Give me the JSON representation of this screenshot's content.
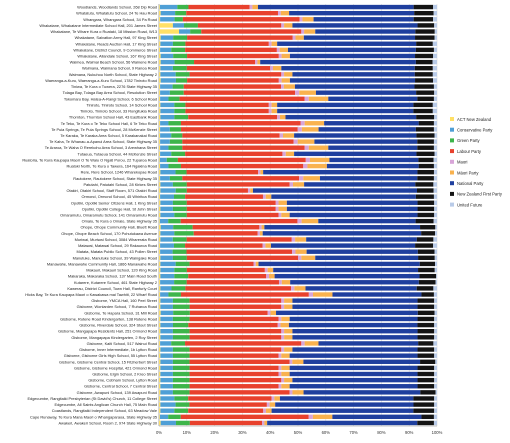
{
  "chart_data": {
    "type": "bar",
    "stacked": true,
    "orientation": "horizontal",
    "grid": true,
    "legend_position": "right",
    "xlim": [
      0,
      1
    ],
    "x_ticks": [
      "0%",
      "10%",
      "20%",
      "30%",
      "40%",
      "50%",
      "60%",
      "70%",
      "80%",
      "90%",
      "100%"
    ],
    "categories": [
      "Woodlands, Woodlands School, 268 Dip Road",
      "Whatatutu, Whatatutu School, 24 Te Hau Road",
      "Whangara, Whangara School, 34 Pa Road",
      "Whakatane, Whakatane Intermediate School Hall, 201 James Street",
      "Whakatane, Te Whare Kura o Ruataki, 18 Mission Road, W13",
      "Whakatane, Salvation Army Hall, 97 King Street",
      "Whakatane, Reads Auction Hall, 17 King Street",
      "Whakatane, District Council, 9 Commerce Street",
      "Whakatane, Allandale School, 167 King Street",
      "Waimea, Waimai Beach School, 56 Wainene Road",
      "Waimana, Waimana School, 9 Ranoa Road",
      "Waimana, Nukuhou North School, State Highway 2",
      "Waeranga-a-Kuru, Waeranga-a-Kuru School, 1782 Tiniroto Road",
      "Tiniwa, Te Kura o Tuwera, 2276 State Highway 35",
      "Tolaga Bay, Tolaga Bay Area School, Resolution Street",
      "Tokomaru Bay, Hatea-A-Rangi School, 6 School Road",
      "Tiniroto, Tiniroto School, 14 School Road",
      "Tiniroto, Tiniroto School, 33 Rongitukia Road",
      "Thornton, Thornton School Hall, 43 Eastbank Road",
      "Te Teko, Te Kura o Te Teko School Hall, 6 Te Teko Road",
      "Te Puia Springs, Te Puia Springs School, 28 McKenzie Street",
      "Te Karaka, Te Karaka Area School, 5 Karakanakai Road",
      "Te Kaha, Te Whanau-a-Apanui Area School, State Highway 35",
      "Te Araroa, Te Waha O Rerekohu Area School, 3 Arewhana Street",
      "Tutaeua, Tutaeua School, 44 McKenzie Street",
      "Ruatoria, Te Kura Kaupapa Maori O Te Waiu O Ngati Porou, 22 Tuparoa Road",
      "Ruatoki North, Te Kura o Tawera, 164 Ngakina Road",
      "Rere, Rere School, 1246 Wharekopae Road",
      "Rautokere, Rautokere School, State Highway 35",
      "Patutahi, Patutahi School, 28 Kirkes Street",
      "Otakiri, Otakiri School, Staff Room, 571 Otakiri Road",
      "Ormond, Ormond School, 45 Whiritoa Road",
      "Opotiki, Opotiki Senior Citizens Hall, 1 King Street",
      "Opotiki, Opotiki College Hall, St John Street",
      "Omaramutu, Omaramutu School, 141 Omaramutu Road",
      "Omaio, Te Kura o Omaio, State Highway 35",
      "Ohope, Ohope Community Hall, Bluett Road",
      "Ohope, Ohope Beach School, 170 Pohutukawa Avenue",
      "Muriwai, Muriwai School, 3084 Wharerata Road",
      "Matawai, Matawai School, 29 Rakauroa Road",
      "Matata, Matata Public School, 43 Pollen Street",
      "Manutuke, Manutuke School, 39 Waingake Road",
      "Manawahe, Manawahe Community Hall, 1866 Manawahe Road",
      "Makauri, Makauri School, 120 King Road",
      "Makaraka, Makaraka School, 137 Main Road South",
      "Kutarere, Kutarere School, 461 State Highway 2",
      "Kawerau, District Council, Town Hall, Ranfurly Court",
      "Hicks Bay, Te Kura Kaupapa Maori o Kawakawa mai Tawhiti, 22 Wharf Road",
      "Gisborne, YMCA Hall, 160 Peel Street",
      "Gisborne, Wonlarden School, 7 Ruharoa Road",
      "Gisborne, Te Hapara School, 31 Mill Road",
      "Gisborne, Rutene Road Kindergarten, 138 Rutene Road",
      "Gisborne, Riverdale School, 324 Stout Street",
      "Gisborne, Mangapapa Residents Hall, 251 Ormond Road",
      "Gisborne, Mangapapa Kindergarten, 2 Roy Street",
      "Gisborne, Kaiti School, 517 Wainui Road",
      "Gisborne, Inner Intermediate, 1b Lytton Road",
      "Gisborne, Gisborne Girls High School, 55 Lytton Road",
      "Gisborne, Gisborne Central School, 15 Fitzherbert Street",
      "Gisborne, Gisborne Hospital, 421 Ormond Road",
      "Gisborne, Elgin School, 2 Kreo Street",
      "Gisborne, Cobham School, Lytton Road",
      "Gisborne, Central School, 7 Central Street",
      "Gisborne, Awapuni School, 139 Awapuni Road",
      "Edgecumbe, Rangitaiki Presbyterian (St David's) Church, 11 College Street",
      "Edgecumbe, All Saints Anglican Church Hall, 75 Main Road",
      "Coastlands, Rangitaiki Independent School, 63 Meadow Vale",
      "Cape Runaway, Te Kura Mana Maori o Whangaparaoa, State Highway 35",
      "Awakeri, Awakeri School, Room 2, 974 State Highway 30"
    ],
    "series": [
      {
        "name": "ACT New Zealand",
        "values": [
          0.003,
          0.006,
          0.004,
          0.05,
          0.072,
          0.006,
          0.005,
          0.004,
          0.006,
          0.006,
          0.005,
          0.005,
          0.006,
          0.004,
          0.004,
          0.004,
          0.005,
          0.005,
          0.005,
          0.004,
          0.004,
          0.004,
          0.004,
          0.004,
          0.004,
          0.003,
          0.004,
          0.005,
          0.004,
          0.005,
          0.005,
          0.004,
          0.005,
          0.005,
          0.005,
          0.003,
          0.006,
          0.005,
          0.005,
          0.004,
          0.004,
          0.005,
          0.005,
          0.005,
          0.005,
          0.004,
          0.005,
          0.004,
          0.005,
          0.005,
          0.006,
          0.005,
          0.005,
          0.005,
          0.005,
          0.004,
          0.005,
          0.005,
          0.005,
          0.005,
          0.005,
          0.005,
          0.005,
          0.005,
          0.005,
          0.005,
          0.005,
          0.003,
          0.006
        ]
      },
      {
        "name": "Conservative Party",
        "values": [
          0.063,
          0.052,
          0.052,
          0.04,
          0.04,
          0.045,
          0.045,
          0.04,
          0.045,
          0.05,
          0.045,
          0.055,
          0.055,
          0.045,
          0.035,
          0.03,
          0.05,
          0.05,
          0.05,
          0.03,
          0.035,
          0.04,
          0.035,
          0.03,
          0.04,
          0.025,
          0.03,
          0.055,
          0.035,
          0.045,
          0.055,
          0.05,
          0.045,
          0.045,
          0.05,
          0.03,
          0.045,
          0.05,
          0.045,
          0.05,
          0.045,
          0.045,
          0.055,
          0.05,
          0.05,
          0.05,
          0.04,
          0.03,
          0.045,
          0.045,
          0.045,
          0.045,
          0.045,
          0.045,
          0.045,
          0.04,
          0.045,
          0.045,
          0.045,
          0.045,
          0.045,
          0.045,
          0.045,
          0.045,
          0.05,
          0.055,
          0.05,
          0.03,
          0.055
        ]
      },
      {
        "name": "Green Party",
        "values": [
          0.04,
          0.04,
          0.03,
          0.05,
          0.04,
          0.05,
          0.045,
          0.05,
          0.05,
          0.07,
          0.05,
          0.05,
          0.04,
          0.04,
          0.05,
          0.04,
          0.04,
          0.04,
          0.05,
          0.045,
          0.04,
          0.04,
          0.045,
          0.05,
          0.05,
          0.04,
          0.045,
          0.04,
          0.045,
          0.05,
          0.04,
          0.04,
          0.05,
          0.05,
          0.045,
          0.045,
          0.07,
          0.07,
          0.05,
          0.04,
          0.05,
          0.05,
          0.05,
          0.045,
          0.05,
          0.045,
          0.05,
          0.045,
          0.06,
          0.06,
          0.06,
          0.06,
          0.055,
          0.06,
          0.06,
          0.05,
          0.06,
          0.06,
          0.06,
          0.06,
          0.06,
          0.06,
          0.06,
          0.06,
          0.05,
          0.05,
          0.05,
          0.045,
          0.05
        ]
      },
      {
        "name": "Labour Party",
        "values": [
          0.22,
          0.33,
          0.42,
          0.3,
          0.36,
          0.38,
          0.3,
          0.33,
          0.33,
          0.22,
          0.3,
          0.33,
          0.33,
          0.35,
          0.4,
          0.45,
          0.3,
          0.3,
          0.32,
          0.43,
          0.42,
          0.35,
          0.4,
          0.44,
          0.35,
          0.46,
          0.44,
          0.26,
          0.42,
          0.37,
          0.22,
          0.28,
          0.32,
          0.32,
          0.33,
          0.42,
          0.24,
          0.23,
          0.38,
          0.28,
          0.38,
          0.4,
          0.23,
          0.28,
          0.28,
          0.33,
          0.38,
          0.46,
          0.33,
          0.33,
          0.28,
          0.32,
          0.32,
          0.33,
          0.33,
          0.42,
          0.33,
          0.32,
          0.36,
          0.32,
          0.32,
          0.33,
          0.32,
          0.36,
          0.3,
          0.28,
          0.27,
          0.46,
          0.26
        ]
      },
      {
        "name": "Maori",
        "values": [
          0.01,
          0.01,
          0.01,
          0.01,
          0.01,
          0.01,
          0.01,
          0.01,
          0.01,
          0.008,
          0.01,
          0.01,
          0.01,
          0.01,
          0.015,
          0.015,
          0.01,
          0.01,
          0.01,
          0.015,
          0.015,
          0.012,
          0.015,
          0.015,
          0.012,
          0.015,
          0.015,
          0.008,
          0.015,
          0.012,
          0.008,
          0.01,
          0.01,
          0.01,
          0.01,
          0.015,
          0.008,
          0.008,
          0.012,
          0.01,
          0.012,
          0.012,
          0.008,
          0.01,
          0.01,
          0.01,
          0.012,
          0.015,
          0.01,
          0.01,
          0.01,
          0.01,
          0.01,
          0.01,
          0.01,
          0.012,
          0.01,
          0.01,
          0.01,
          0.01,
          0.01,
          0.01,
          0.01,
          0.01,
          0.01,
          0.01,
          0.01,
          0.015,
          0.008
        ]
      },
      {
        "name": "Māori Party",
        "values": [
          0.02,
          0.03,
          0.04,
          0.03,
          0.04,
          0.03,
          0.02,
          0.03,
          0.03,
          0.01,
          0.03,
          0.03,
          0.03,
          0.04,
          0.06,
          0.07,
          0.02,
          0.02,
          0.02,
          0.07,
          0.06,
          0.04,
          0.06,
          0.07,
          0.03,
          0.07,
          0.07,
          0.01,
          0.06,
          0.04,
          0.01,
          0.02,
          0.03,
          0.03,
          0.03,
          0.06,
          0.01,
          0.01,
          0.04,
          0.02,
          0.04,
          0.05,
          0.01,
          0.02,
          0.02,
          0.03,
          0.04,
          0.07,
          0.03,
          0.03,
          0.02,
          0.03,
          0.03,
          0.03,
          0.03,
          0.05,
          0.03,
          0.03,
          0.04,
          0.03,
          0.03,
          0.03,
          0.03,
          0.04,
          0.02,
          0.02,
          0.02,
          0.07,
          0.01
        ]
      },
      {
        "name": "National Party",
        "values": [
          0.56,
          0.45,
          0.36,
          0.45,
          0.36,
          0.4,
          0.5,
          0.46,
          0.45,
          0.56,
          0.48,
          0.44,
          0.45,
          0.43,
          0.36,
          0.32,
          0.49,
          0.49,
          0.47,
          0.34,
          0.35,
          0.44,
          0.37,
          0.32,
          0.44,
          0.32,
          0.33,
          0.56,
          0.35,
          0.4,
          0.59,
          0.52,
          0.47,
          0.47,
          0.46,
          0.35,
          0.56,
          0.57,
          0.4,
          0.52,
          0.4,
          0.37,
          0.58,
          0.52,
          0.52,
          0.46,
          0.4,
          0.32,
          0.45,
          0.45,
          0.51,
          0.46,
          0.46,
          0.45,
          0.45,
          0.36,
          0.45,
          0.46,
          0.42,
          0.46,
          0.46,
          0.45,
          0.46,
          0.42,
          0.48,
          0.5,
          0.51,
          0.32,
          0.54
        ]
      },
      {
        "name": "New Zealand First Party",
        "values": [
          0.07,
          0.07,
          0.07,
          0.06,
          0.07,
          0.07,
          0.06,
          0.065,
          0.065,
          0.06,
          0.065,
          0.065,
          0.065,
          0.07,
          0.065,
          0.06,
          0.07,
          0.07,
          0.065,
          0.055,
          0.065,
          0.065,
          0.06,
          0.06,
          0.065,
          0.055,
          0.055,
          0.06,
          0.06,
          0.065,
          0.06,
          0.065,
          0.06,
          0.06,
          0.06,
          0.065,
          0.055,
          0.05,
          0.06,
          0.065,
          0.06,
          0.06,
          0.055,
          0.06,
          0.06,
          0.06,
          0.06,
          0.045,
          0.06,
          0.06,
          0.06,
          0.06,
          0.06,
          0.06,
          0.06,
          0.055,
          0.06,
          0.06,
          0.055,
          0.06,
          0.06,
          0.06,
          0.06,
          0.055,
          0.075,
          0.075,
          0.075,
          0.045,
          0.06
        ]
      },
      {
        "name": "United Future",
        "values": [
          0.014,
          0.012,
          0.014,
          0.01,
          0.008,
          0.009,
          0.015,
          0.011,
          0.014,
          0.016,
          0.015,
          0.015,
          0.014,
          0.011,
          0.01,
          0.011,
          0.015,
          0.015,
          0.01,
          0.011,
          0.011,
          0.009,
          0.011,
          0.011,
          0.009,
          0.012,
          0.011,
          0.011,
          0.011,
          0.013,
          0.012,
          0.011,
          0.01,
          0.01,
          0.01,
          0.012,
          0.006,
          0.007,
          0.013,
          0.014,
          0.009,
          0.008,
          0.007,
          0.008,
          0.003,
          0.005,
          0.013,
          0.011,
          0.01,
          0.01,
          0.009,
          0.01,
          0.01,
          0.01,
          0.01,
          0.013,
          0.01,
          0.01,
          0.006,
          0.01,
          0.01,
          0.01,
          0.01,
          0.005,
          0.01,
          0.01,
          0.01,
          0.011,
          0.011
        ]
      }
    ]
  },
  "colors": {
    "ACT New Zealand": "#ffe066",
    "Conservative Party": "#4f9fd6",
    "Green Party": "#3db54a",
    "Labour Party": "#e8412d",
    "Maori": "#d8a5d8",
    "Māori Party": "#f9b24e",
    "National Party": "#1f3f9e",
    "New Zealand First Party": "#141414",
    "United Future": "#b9cbe8"
  }
}
